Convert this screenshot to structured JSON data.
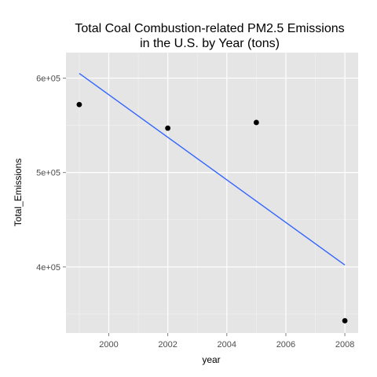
{
  "chart_data": {
    "type": "scatter",
    "title_line1": "Total Coal Combustion-related PM2.5 Emissions",
    "title_line2": "in the U.S. by Year (tons)",
    "xlabel": "year",
    "ylabel": "Total_Emissions",
    "x_ticks": [
      2000,
      2002,
      2004,
      2006,
      2008
    ],
    "x_tick_labels": [
      "2000",
      "2002",
      "2004",
      "2006",
      "2008"
    ],
    "y_ticks": [
      400000,
      500000,
      600000
    ],
    "y_tick_labels": [
      "4e+05",
      "5e+05",
      "6e+05"
    ],
    "xlim": [
      1998.55,
      2008.45
    ],
    "ylim": [
      330000,
      627000
    ],
    "grid": true,
    "points": [
      {
        "x": 1999,
        "y": 572000
      },
      {
        "x": 2002,
        "y": 547000
      },
      {
        "x": 2005,
        "y": 553000
      },
      {
        "x": 2008,
        "y": 343000
      }
    ],
    "trend_line": {
      "x": [
        1999,
        2008
      ],
      "y": [
        605000,
        402000
      ]
    },
    "colors": {
      "panel": "#e5e5e5",
      "grid_major": "#ffffff",
      "grid_minor": "#f2f2f2",
      "point": "#000000",
      "line": "#3366ff"
    }
  }
}
